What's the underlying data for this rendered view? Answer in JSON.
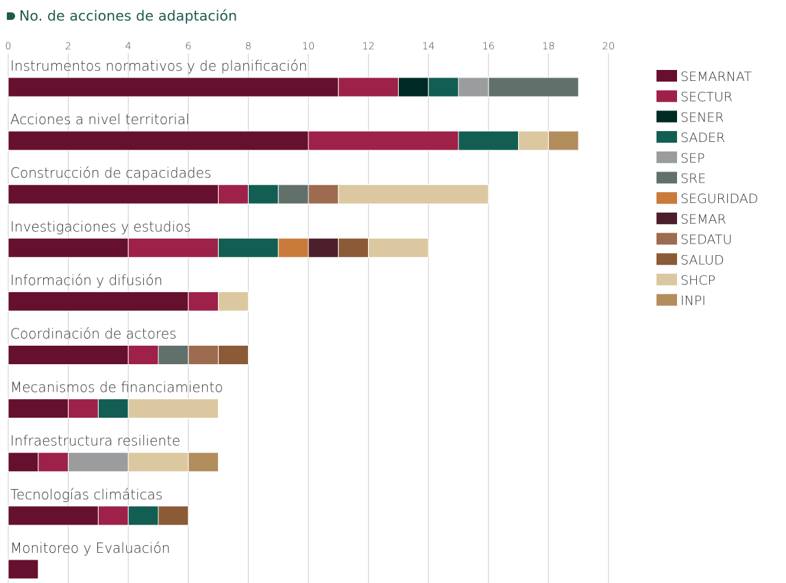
{
  "title": "No. de acciones de adaptación",
  "chart_data": {
    "type": "bar",
    "orientation": "horizontal",
    "stacked": true,
    "xlim": [
      0,
      20
    ],
    "xticks": [
      0,
      2,
      4,
      6,
      8,
      10,
      12,
      14,
      16,
      18,
      20
    ],
    "grid": true,
    "legend_position": "right",
    "categories": [
      "Instrumentos normativos y de planificación",
      "Acciones a nivel territorial",
      "Construcción de capacidades",
      "Investigaciones y estudios",
      "Información y difusión",
      "Coordinación de actores",
      "Mecanismos de financiamiento",
      "Infraestructura resiliente",
      "Tecnologías climáticas",
      "Monitoreo y Evaluación"
    ],
    "series": [
      {
        "name": "SEMARNAT",
        "color": "#66102f",
        "values": [
          11,
          10,
          7,
          4,
          6,
          4,
          2,
          1,
          3,
          1
        ]
      },
      {
        "name": "SECTUR",
        "color": "#9d2148",
        "values": [
          2,
          5,
          1,
          3,
          1,
          1,
          1,
          1,
          1,
          0
        ]
      },
      {
        "name": "SENER",
        "color": "#002a25",
        "values": [
          1,
          0,
          0,
          0,
          0,
          0,
          0,
          0,
          0,
          0
        ]
      },
      {
        "name": "SADER",
        "color": "#125e52",
        "values": [
          1,
          2,
          1,
          2,
          0,
          0,
          1,
          0,
          1,
          0
        ]
      },
      {
        "name": "SEP",
        "color": "#9a9c9e",
        "values": [
          1,
          0,
          0,
          0,
          0,
          0,
          0,
          2,
          0,
          0
        ]
      },
      {
        "name": "SRE",
        "color": "#62706c",
        "values": [
          3,
          0,
          1,
          0,
          0,
          1,
          0,
          0,
          0,
          0
        ]
      },
      {
        "name": "SEGURIDAD",
        "color": "#c97b3a",
        "values": [
          0,
          0,
          0,
          1,
          0,
          0,
          0,
          0,
          0,
          0
        ]
      },
      {
        "name": "SEMAR",
        "color": "#4d1f2c",
        "values": [
          0,
          0,
          0,
          1,
          0,
          0,
          0,
          0,
          0,
          0
        ]
      },
      {
        "name": "SEDATU",
        "color": "#9d6b4f",
        "values": [
          0,
          0,
          1,
          0,
          0,
          1,
          0,
          0,
          0,
          0
        ]
      },
      {
        "name": "SALUD",
        "color": "#8b5a37",
        "values": [
          0,
          0,
          0,
          1,
          0,
          1,
          0,
          0,
          1,
          0
        ]
      },
      {
        "name": "SHCP",
        "color": "#dcc8a0",
        "values": [
          0,
          1,
          5,
          2,
          1,
          0,
          3,
          2,
          0,
          0
        ]
      },
      {
        "name": "INPI",
        "color": "#b38e5d",
        "values": [
          0,
          1,
          0,
          0,
          0,
          0,
          0,
          1,
          0,
          0
        ]
      }
    ]
  }
}
